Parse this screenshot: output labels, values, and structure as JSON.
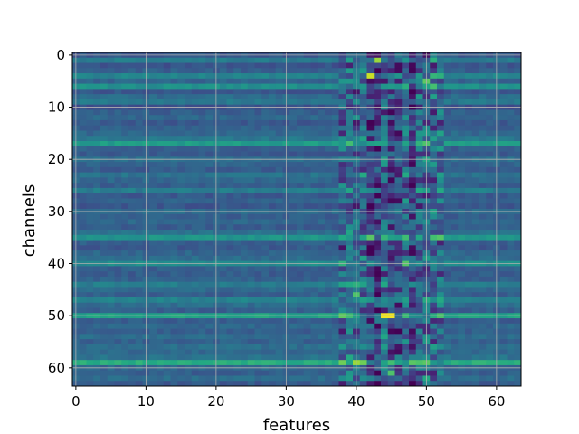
{
  "chart_data": {
    "type": "heatmap",
    "title": "",
    "xlabel": "features",
    "ylabel": "channels",
    "rows": 64,
    "cols": 64,
    "x_ticks": [
      0,
      10,
      20,
      30,
      40,
      50,
      60
    ],
    "y_ticks": [
      0,
      10,
      20,
      30,
      40,
      50,
      60
    ],
    "xlim": [
      -0.5,
      63.5
    ],
    "ylim": [
      63.5,
      -0.5
    ],
    "grid": true,
    "colormap": "viridis",
    "approx_value_range": [
      0,
      1
    ],
    "row_baselines": [
      0.28,
      0.42,
      0.26,
      0.3,
      0.45,
      0.32,
      0.5,
      0.27,
      0.35,
      0.4,
      0.25,
      0.3,
      0.33,
      0.28,
      0.31,
      0.34,
      0.4,
      0.55,
      0.3,
      0.28,
      0.36,
      0.32,
      0.29,
      0.38,
      0.33,
      0.3,
      0.42,
      0.28,
      0.31,
      0.27,
      0.35,
      0.3,
      0.33,
      0.29,
      0.37,
      0.52,
      0.3,
      0.28,
      0.33,
      0.35,
      0.48,
      0.3,
      0.29,
      0.31,
      0.42,
      0.34,
      0.3,
      0.44,
      0.36,
      0.3,
      0.58,
      0.29,
      0.33,
      0.3,
      0.35,
      0.31,
      0.36,
      0.34,
      0.38,
      0.62,
      0.33,
      0.3,
      0.35,
      0.28
    ],
    "feature_band": {
      "start": 38,
      "end": 52,
      "dark_cols": [
        42,
        43,
        45,
        46,
        48
      ]
    },
    "highlights": [
      {
        "row": 1,
        "col": 43,
        "value": 0.85
      },
      {
        "row": 4,
        "col": 42,
        "value": 0.92
      },
      {
        "row": 5,
        "col": 50,
        "value": 0.75
      },
      {
        "row": 6,
        "col": 51,
        "value": 0.7
      },
      {
        "row": 17,
        "col": 50,
        "value": 0.72
      },
      {
        "row": 35,
        "col": 42,
        "value": 0.74
      },
      {
        "row": 46,
        "col": 40,
        "value": 0.72
      },
      {
        "row": 50,
        "col": 44,
        "value": 0.98
      },
      {
        "row": 50,
        "col": 45,
        "value": 0.98
      },
      {
        "row": 59,
        "col": 41,
        "value": 0.78
      },
      {
        "row": 59,
        "col": 48,
        "value": 0.74
      },
      {
        "row": 61,
        "col": 45,
        "value": 0.72
      }
    ]
  }
}
